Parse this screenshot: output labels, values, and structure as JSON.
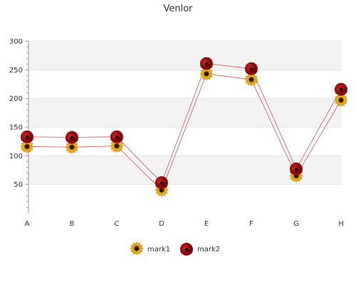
{
  "chart_data": {
    "type": "line",
    "title": "Venlor",
    "xlabel": "",
    "ylabel": "",
    "categories": [
      "A",
      "B",
      "C",
      "D",
      "E",
      "F",
      "G",
      "H"
    ],
    "ylim": [
      0,
      300
    ],
    "yticks": [
      50,
      100,
      150,
      200,
      250,
      300
    ],
    "grid": true,
    "legend_position": "bottom",
    "series": [
      {
        "name": "mark1",
        "values": [
          116,
          115,
          117,
          40,
          243,
          233,
          65,
          197
        ],
        "color": "#d08a8a",
        "marker": "sunflower-icon"
      },
      {
        "name": "mark2",
        "values": [
          133,
          132,
          133,
          53,
          261,
          252,
          77,
          216
        ],
        "color": "#c04040",
        "marker": "rose-icon"
      }
    ],
    "colors": {
      "band": "#f3f3f3",
      "axis": "#999999",
      "line": "#cc5555"
    }
  }
}
